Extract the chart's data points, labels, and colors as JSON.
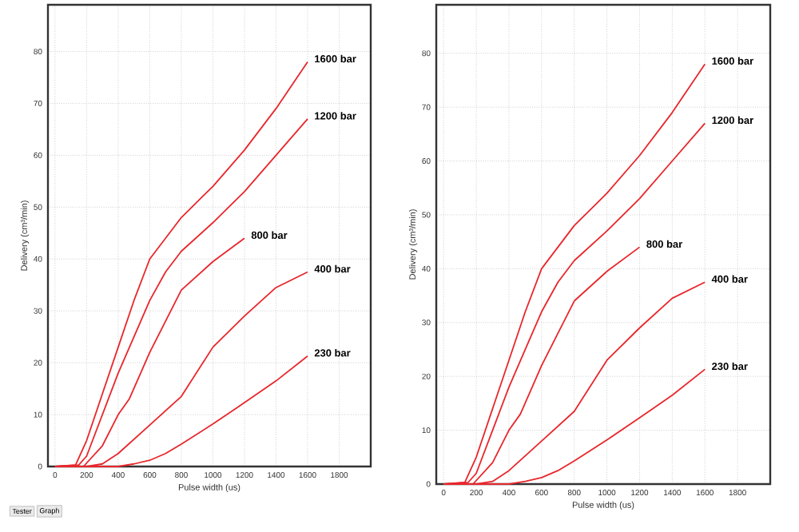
{
  "chart_data": [
    {
      "type": "line",
      "xlabel": "Pulse width (us)",
      "ylabel": "Delivery (cm³/min)",
      "xlim": [
        -45,
        2000
      ],
      "ylim": [
        0,
        89
      ],
      "xticks": [
        0,
        200,
        400,
        600,
        800,
        1000,
        1200,
        1400,
        1600,
        1800
      ],
      "yticks": [
        0,
        10,
        20,
        30,
        40,
        50,
        60,
        70,
        80
      ],
      "grid": true,
      "legend": false,
      "marker": "none",
      "line_style": "solid",
      "annotations": [
        "Tester",
        "Graph"
      ],
      "series": [
        {
          "name": "1600 bar",
          "color": "#e8262b",
          "x": [
            0,
            130,
            200,
            300,
            400,
            500,
            600,
            700,
            800,
            1000,
            1200,
            1400,
            1600
          ],
          "values": [
            0,
            0.3,
            5,
            14,
            23,
            32,
            40,
            44,
            48,
            54,
            61,
            69,
            78
          ]
        },
        {
          "name": "1200 bar",
          "color": "#e8262b",
          "x": [
            0,
            150,
            200,
            300,
            400,
            500,
            600,
            700,
            800,
            1000,
            1200,
            1400,
            1600
          ],
          "values": [
            0,
            0.3,
            2,
            10,
            18,
            25,
            32,
            37.5,
            41.5,
            47,
            53,
            60,
            67
          ]
        },
        {
          "name": "800 bar",
          "color": "#e8262b",
          "x": [
            0,
            180,
            300,
            400,
            470,
            600,
            800,
            1000,
            1200
          ],
          "values": [
            0,
            0,
            4,
            10,
            13,
            22,
            34,
            39.5,
            44
          ]
        },
        {
          "name": "400 bar",
          "color": "#e8262b",
          "x": [
            0,
            200,
            300,
            400,
            600,
            800,
            1000,
            1200,
            1400,
            1600
          ],
          "values": [
            0,
            0,
            0.5,
            2.5,
            8,
            13.5,
            23,
            29,
            34.5,
            37.5
          ]
        },
        {
          "name": "230 bar",
          "color": "#e8262b",
          "x": [
            0,
            400,
            500,
            600,
            700,
            800,
            1000,
            1200,
            1400,
            1600
          ],
          "values": [
            0,
            0,
            0.5,
            1.2,
            2.5,
            4.3,
            8.2,
            12.3,
            16.5,
            21.3
          ]
        }
      ]
    },
    {
      "type": "line",
      "xlabel": "Pulse width (us)",
      "ylabel": "Delivery (cm³/min)",
      "xlim": [
        -45,
        2000
      ],
      "ylim": [
        0,
        89
      ],
      "xticks": [
        0,
        200,
        400,
        600,
        800,
        1000,
        1200,
        1400,
        1600,
        1800
      ],
      "yticks": [
        0,
        10,
        20,
        30,
        40,
        50,
        60,
        70,
        80
      ],
      "grid": true,
      "legend": false,
      "marker": "none",
      "line_style": "solid",
      "series": [
        {
          "name": "1600 bar",
          "color": "#e8262b",
          "x": [
            0,
            130,
            200,
            300,
            400,
            500,
            600,
            700,
            800,
            1000,
            1200,
            1400,
            1600
          ],
          "values": [
            0,
            0.3,
            5,
            14,
            23,
            32,
            40,
            44,
            48,
            54,
            61,
            69,
            78
          ]
        },
        {
          "name": "1200 bar",
          "color": "#e8262b",
          "x": [
            0,
            150,
            200,
            300,
            400,
            500,
            600,
            700,
            800,
            1000,
            1200,
            1400,
            1600
          ],
          "values": [
            0,
            0.3,
            2,
            10,
            18,
            25,
            32,
            37.5,
            41.5,
            47,
            53,
            60,
            67
          ]
        },
        {
          "name": "800 bar",
          "color": "#e8262b",
          "x": [
            0,
            180,
            300,
            400,
            470,
            600,
            800,
            1000,
            1200
          ],
          "values": [
            0,
            0,
            4,
            10,
            13,
            22,
            34,
            39.5,
            44
          ]
        },
        {
          "name": "400 bar",
          "color": "#e8262b",
          "x": [
            0,
            200,
            300,
            400,
            600,
            800,
            1000,
            1200,
            1400,
            1600
          ],
          "values": [
            0,
            0,
            0.5,
            2.5,
            8,
            13.5,
            23,
            29,
            34.5,
            37.5
          ]
        },
        {
          "name": "230 bar",
          "color": "#e8262b",
          "x": [
            0,
            400,
            500,
            600,
            700,
            800,
            1000,
            1200,
            1400,
            1600
          ],
          "values": [
            0,
            0,
            0.5,
            1.2,
            2.5,
            4.3,
            8.2,
            12.3,
            16.5,
            21.3
          ]
        }
      ]
    }
  ]
}
